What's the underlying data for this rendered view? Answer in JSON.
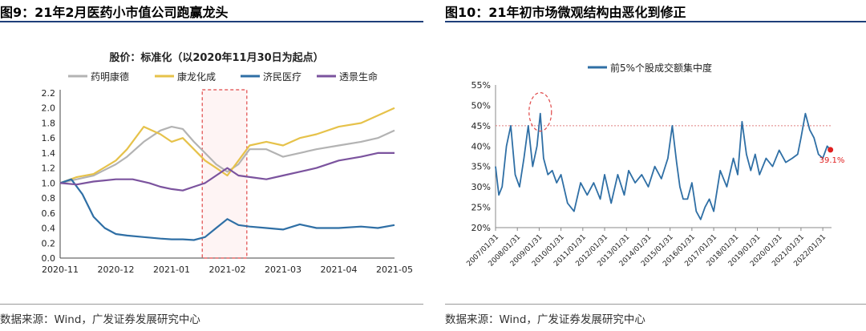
{
  "left": {
    "figure_title": "图9：21年2月医药小市值公司跑赢龙头",
    "source": "数据来源：Wind，广发证券发展研究中心"
  },
  "right": {
    "figure_title": "图10：21年初市场微观结构由恶化到修正",
    "source": "数据来源：Wind，广发证券发展研究中心"
  },
  "chart_data": [
    {
      "type": "line",
      "title": "股价：标准化（以2020年11月30日为起点）",
      "xlabel": "",
      "ylabel": "",
      "x_ticks": [
        "2020-11",
        "2020-12",
        "2021-01",
        "2021-02",
        "2021-03",
        "2021-04",
        "2021-05"
      ],
      "y_ticks": [
        "0.0",
        "0.2",
        "0.4",
        "0.6",
        "0.8",
        "1.0",
        "1.2",
        "1.4",
        "1.6",
        "1.8",
        "2.0",
        "2.2"
      ],
      "ylim": [
        0,
        2.2
      ],
      "xlim_months": [
        0,
        6
      ],
      "grid": false,
      "legend_position": "top",
      "highlight_box_months": [
        2.55,
        3.35
      ],
      "series": [
        {
          "name": "药明康德",
          "color": "#b3b3b3",
          "x": [
            0,
            0.3,
            0.6,
            1.0,
            1.2,
            1.5,
            1.8,
            2.0,
            2.2,
            2.4,
            2.6,
            2.8,
            3.0,
            3.2,
            3.4,
            3.7,
            4.0,
            4.3,
            4.6,
            5.0,
            5.4,
            5.7,
            6.0
          ],
          "y": [
            1.0,
            1.05,
            1.1,
            1.25,
            1.35,
            1.55,
            1.7,
            1.75,
            1.72,
            1.55,
            1.4,
            1.25,
            1.15,
            1.25,
            1.45,
            1.45,
            1.35,
            1.4,
            1.45,
            1.5,
            1.55,
            1.6,
            1.7
          ]
        },
        {
          "name": "康龙化成",
          "color": "#e6c24a",
          "x": [
            0,
            0.3,
            0.6,
            1.0,
            1.2,
            1.5,
            1.8,
            2.0,
            2.2,
            2.4,
            2.6,
            2.8,
            3.0,
            3.2,
            3.4,
            3.7,
            4.0,
            4.3,
            4.6,
            5.0,
            5.4,
            5.7,
            6.0
          ],
          "y": [
            1.0,
            1.08,
            1.12,
            1.3,
            1.45,
            1.75,
            1.65,
            1.55,
            1.6,
            1.45,
            1.3,
            1.2,
            1.1,
            1.3,
            1.5,
            1.55,
            1.5,
            1.6,
            1.65,
            1.75,
            1.8,
            1.9,
            2.0
          ]
        },
        {
          "name": "济民医疗",
          "color": "#2f6fa5",
          "x": [
            0,
            0.2,
            0.4,
            0.6,
            0.8,
            1.0,
            1.2,
            1.5,
            1.8,
            2.0,
            2.2,
            2.4,
            2.6,
            2.8,
            3.0,
            3.2,
            3.4,
            3.7,
            4.0,
            4.3,
            4.6,
            5.0,
            5.4,
            5.7,
            6.0
          ],
          "y": [
            1.0,
            1.05,
            0.85,
            0.55,
            0.4,
            0.32,
            0.3,
            0.28,
            0.26,
            0.25,
            0.25,
            0.24,
            0.28,
            0.4,
            0.52,
            0.44,
            0.42,
            0.4,
            0.38,
            0.45,
            0.4,
            0.4,
            0.42,
            0.4,
            0.44
          ]
        },
        {
          "name": "透景生命",
          "color": "#7b539e",
          "x": [
            0,
            0.3,
            0.6,
            1.0,
            1.3,
            1.6,
            1.8,
            2.0,
            2.2,
            2.4,
            2.6,
            2.8,
            3.0,
            3.2,
            3.4,
            3.7,
            4.0,
            4.3,
            4.6,
            5.0,
            5.4,
            5.7,
            6.0
          ],
          "y": [
            1.0,
            0.98,
            1.02,
            1.05,
            1.05,
            1.0,
            0.95,
            0.92,
            0.9,
            0.95,
            1.0,
            1.1,
            1.2,
            1.1,
            1.08,
            1.05,
            1.1,
            1.15,
            1.2,
            1.3,
            1.35,
            1.4,
            1.4
          ]
        }
      ]
    },
    {
      "type": "line",
      "title": "",
      "xlabel": "",
      "ylabel": "",
      "y_ticks": [
        "20%",
        "25%",
        "30%",
        "35%",
        "40%",
        "45%",
        "50%",
        "55%"
      ],
      "ylim": [
        20,
        55
      ],
      "x_ticks": [
        "2007/01/31",
        "2008/01/31",
        "2009/01/31",
        "2010/01/31",
        "2011/01/31",
        "2012/01/31",
        "2013/01/31",
        "2014/01/31",
        "2015/01/31",
        "2016/01/31",
        "2017/01/31",
        "2018/01/31",
        "2019/01/31",
        "2020/01/31",
        "2021/01/31",
        "2022/01/31"
      ],
      "xlim_years": [
        2007,
        2022.4
      ],
      "reference_line": 45,
      "grid": false,
      "legend_position": "top",
      "end_label": "39.1%",
      "series": [
        {
          "name": "前5%个股成交额集中度",
          "color": "#2f6fa5",
          "x": [
            2007.0,
            2007.15,
            2007.3,
            2007.5,
            2007.7,
            2007.9,
            2008.1,
            2008.3,
            2008.5,
            2008.7,
            2008.9,
            2009.05,
            2009.2,
            2009.4,
            2009.6,
            2009.8,
            2010.0,
            2010.3,
            2010.6,
            2010.9,
            2011.2,
            2011.5,
            2011.8,
            2012.0,
            2012.3,
            2012.6,
            2012.9,
            2013.1,
            2013.4,
            2013.7,
            2014.0,
            2014.3,
            2014.6,
            2014.9,
            2015.1,
            2015.3,
            2015.45,
            2015.6,
            2015.8,
            2016.0,
            2016.2,
            2016.4,
            2016.6,
            2016.8,
            2017.0,
            2017.3,
            2017.6,
            2017.9,
            2018.1,
            2018.3,
            2018.5,
            2018.7,
            2018.9,
            2019.1,
            2019.4,
            2019.7,
            2020.0,
            2020.3,
            2020.6,
            2020.85,
            2021.0,
            2021.2,
            2021.4,
            2021.6,
            2021.8,
            2022.0,
            2022.2,
            2022.35
          ],
          "y": [
            35,
            28,
            30,
            40,
            45,
            33,
            30,
            37,
            45,
            35,
            40,
            48,
            37,
            33,
            34,
            31,
            33,
            26,
            24,
            31,
            28,
            31,
            27,
            33,
            26,
            33,
            28,
            34,
            31,
            33,
            30,
            35,
            32,
            37,
            45,
            36,
            30,
            27,
            27,
            31,
            24,
            22,
            25,
            27,
            24,
            34,
            30,
            37,
            33,
            46,
            38,
            34,
            38,
            33,
            37,
            35,
            39,
            36,
            37,
            38,
            42,
            48,
            44,
            42,
            38,
            37,
            40,
            39.1
          ]
        }
      ]
    }
  ]
}
